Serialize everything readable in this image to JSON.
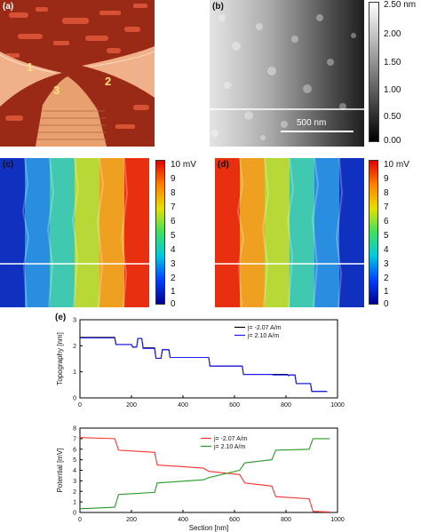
{
  "figure": {
    "panels": {
      "a": {
        "label": "(a)",
        "tip_labels": [
          "1",
          "2",
          "3"
        ]
      },
      "b": {
        "label": "(b)",
        "scalebar_text": "500 nm",
        "colorbar_ticks": [
          "2.50 nm",
          "2.00",
          "1.50",
          "1.00",
          "0.50",
          "0.00"
        ]
      },
      "c": {
        "label": "(c)",
        "colorbar_ticks": [
          "10 mV",
          "9",
          "8",
          "7",
          "6",
          "5",
          "4",
          "3",
          "2",
          "1",
          "0"
        ]
      },
      "d": {
        "label": "(d)",
        "colorbar_ticks": [
          "10 mV",
          "9",
          "8",
          "7",
          "6",
          "5",
          "4",
          "3",
          "2",
          "1",
          "0"
        ]
      },
      "e": {
        "label": "(e)"
      }
    },
    "colors": {
      "series_neg": "#000000",
      "series_pos": "#1a1aff",
      "pot_neg": "#ff3333",
      "pot_pos": "#2a9a2a"
    }
  },
  "chart_data": [
    {
      "type": "line",
      "ylabel": "Topography [nm]",
      "xlabel": "",
      "xlim": [
        0,
        1000
      ],
      "ylim": [
        0,
        3
      ],
      "x_ticks": [
        0,
        200,
        400,
        600,
        800,
        1000
      ],
      "y_ticks": [
        0,
        1,
        2,
        3
      ],
      "legend": "top-right",
      "series": [
        {
          "name": "j= -2.07 A/m",
          "color": "#000000",
          "points": [
            [
              0,
              2.32
            ],
            [
              135,
              2.32
            ],
            [
              140,
              2.05
            ],
            [
              200,
              2.05
            ],
            [
              205,
              1.95
            ],
            [
              220,
              1.95
            ],
            [
              225,
              2.28
            ],
            [
              240,
              2.28
            ],
            [
              245,
              1.92
            ],
            [
              290,
              1.92
            ],
            [
              295,
              1.52
            ],
            [
              315,
              1.52
            ],
            [
              320,
              1.85
            ],
            [
              345,
              1.85
            ],
            [
              350,
              1.55
            ],
            [
              500,
              1.55
            ],
            [
              505,
              1.22
            ],
            [
              630,
              1.22
            ],
            [
              635,
              0.9
            ],
            [
              805,
              0.9
            ],
            [
              810,
              0.85
            ],
            [
              815,
              0.88
            ],
            [
              835,
              0.88
            ],
            [
              840,
              0.55
            ],
            [
              895,
              0.55
            ],
            [
              900,
              0.25
            ],
            [
              960,
              0.25
            ]
          ]
        },
        {
          "name": "j= 2.10 A/m",
          "color": "#1a1aff",
          "points": [
            [
              0,
              2.3
            ],
            [
              135,
              2.3
            ],
            [
              140,
              2.05
            ],
            [
              200,
              2.05
            ],
            [
              205,
              1.95
            ],
            [
              220,
              1.95
            ],
            [
              225,
              2.28
            ],
            [
              240,
              2.28
            ],
            [
              245,
              1.9
            ],
            [
              290,
              1.9
            ],
            [
              295,
              1.52
            ],
            [
              315,
              1.52
            ],
            [
              320,
              1.85
            ],
            [
              345,
              1.85
            ],
            [
              350,
              1.55
            ],
            [
              500,
              1.55
            ],
            [
              505,
              1.22
            ],
            [
              630,
              1.22
            ],
            [
              635,
              0.9
            ],
            [
              745,
              0.9
            ],
            [
              750,
              0.88
            ],
            [
              805,
              0.88
            ],
            [
              810,
              0.88
            ],
            [
              815,
              0.88
            ],
            [
              835,
              0.88
            ],
            [
              840,
              0.55
            ],
            [
              895,
              0.55
            ],
            [
              900,
              0.25
            ],
            [
              960,
              0.25
            ]
          ]
        }
      ]
    },
    {
      "type": "line",
      "ylabel": "Potential [mV]",
      "xlabel": "Section [nm]",
      "xlim": [
        0,
        1000
      ],
      "ylim": [
        0,
        8
      ],
      "x_ticks": [
        0,
        200,
        400,
        600,
        800,
        1000
      ],
      "y_ticks": [
        0,
        1,
        2,
        3,
        4,
        5,
        6,
        7,
        8
      ],
      "legend": "top-center",
      "series": [
        {
          "name": "j= -2.07 A/m",
          "color": "#ff3333",
          "points": [
            [
              0,
              7.1
            ],
            [
              135,
              7.0
            ],
            [
              150,
              5.9
            ],
            [
              290,
              5.7
            ],
            [
              300,
              4.5
            ],
            [
              480,
              4.2
            ],
            [
              500,
              3.9
            ],
            [
              620,
              3.6
            ],
            [
              640,
              2.8
            ],
            [
              745,
              2.5
            ],
            [
              760,
              1.5
            ],
            [
              890,
              1.3
            ],
            [
              905,
              0.1
            ],
            [
              970,
              0.05
            ]
          ]
        },
        {
          "name": "j= 2.10 A/m",
          "color": "#2a9a2a",
          "points": [
            [
              0,
              0.35
            ],
            [
              135,
              0.5
            ],
            [
              150,
              1.7
            ],
            [
              290,
              1.9
            ],
            [
              300,
              2.8
            ],
            [
              480,
              3.1
            ],
            [
              500,
              3.3
            ],
            [
              620,
              4.0
            ],
            [
              640,
              4.7
            ],
            [
              745,
              5.0
            ],
            [
              760,
              5.9
            ],
            [
              890,
              6.0
            ],
            [
              905,
              7.0
            ],
            [
              970,
              7.0
            ]
          ]
        }
      ]
    }
  ]
}
